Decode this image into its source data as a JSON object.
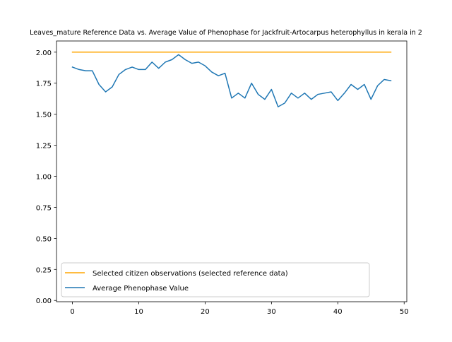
{
  "chart_data": {
    "type": "line",
    "title": "Leaves_mature Reference Data vs. Average Value of Phenophase for Jackfruit-Artocarpus heterophyllus in kerala in 2",
    "xlabel": "",
    "ylabel": "",
    "xlim": [
      -2.4,
      50.4
    ],
    "ylim": [
      -0.01,
      2.09
    ],
    "x_ticks": [
      0,
      10,
      20,
      30,
      40,
      50
    ],
    "y_ticks": [
      0.0,
      0.25,
      0.5,
      0.75,
      1.0,
      1.25,
      1.5,
      1.75,
      2.0
    ],
    "y_tick_labels": [
      "0.00",
      "0.25",
      "0.50",
      "0.75",
      "1.00",
      "1.25",
      "1.50",
      "1.75",
      "2.00"
    ],
    "grid": false,
    "legend_position": "lower-left",
    "series": [
      {
        "name": "Selected citizen observations (selected reference data)",
        "color": "#ffa500",
        "x": [
          0,
          48
        ],
        "values": [
          2.0,
          2.0
        ]
      },
      {
        "name": "Average Phenophase Value",
        "color": "#1f77b4",
        "x": [
          0,
          1,
          2,
          3,
          4,
          5,
          6,
          7,
          8,
          9,
          10,
          11,
          12,
          13,
          14,
          15,
          16,
          17,
          18,
          19,
          20,
          21,
          22,
          23,
          24,
          25,
          26,
          27,
          28,
          29,
          30,
          31,
          32,
          33,
          34,
          35,
          36,
          37,
          38,
          39,
          40,
          41,
          42,
          43,
          44,
          45,
          46,
          47,
          48
        ],
        "values": [
          1.88,
          1.86,
          1.85,
          1.85,
          1.74,
          1.68,
          1.72,
          1.82,
          1.86,
          1.88,
          1.86,
          1.86,
          1.92,
          1.87,
          1.92,
          1.94,
          1.98,
          1.94,
          1.91,
          1.92,
          1.89,
          1.84,
          1.81,
          1.83,
          1.63,
          1.67,
          1.63,
          1.75,
          1.66,
          1.62,
          1.7,
          1.56,
          1.59,
          1.67,
          1.63,
          1.67,
          1.62,
          1.66,
          1.67,
          1.68,
          1.61,
          1.67,
          1.74,
          1.7,
          1.74,
          1.62,
          1.73,
          1.78,
          1.77
        ]
      }
    ]
  }
}
